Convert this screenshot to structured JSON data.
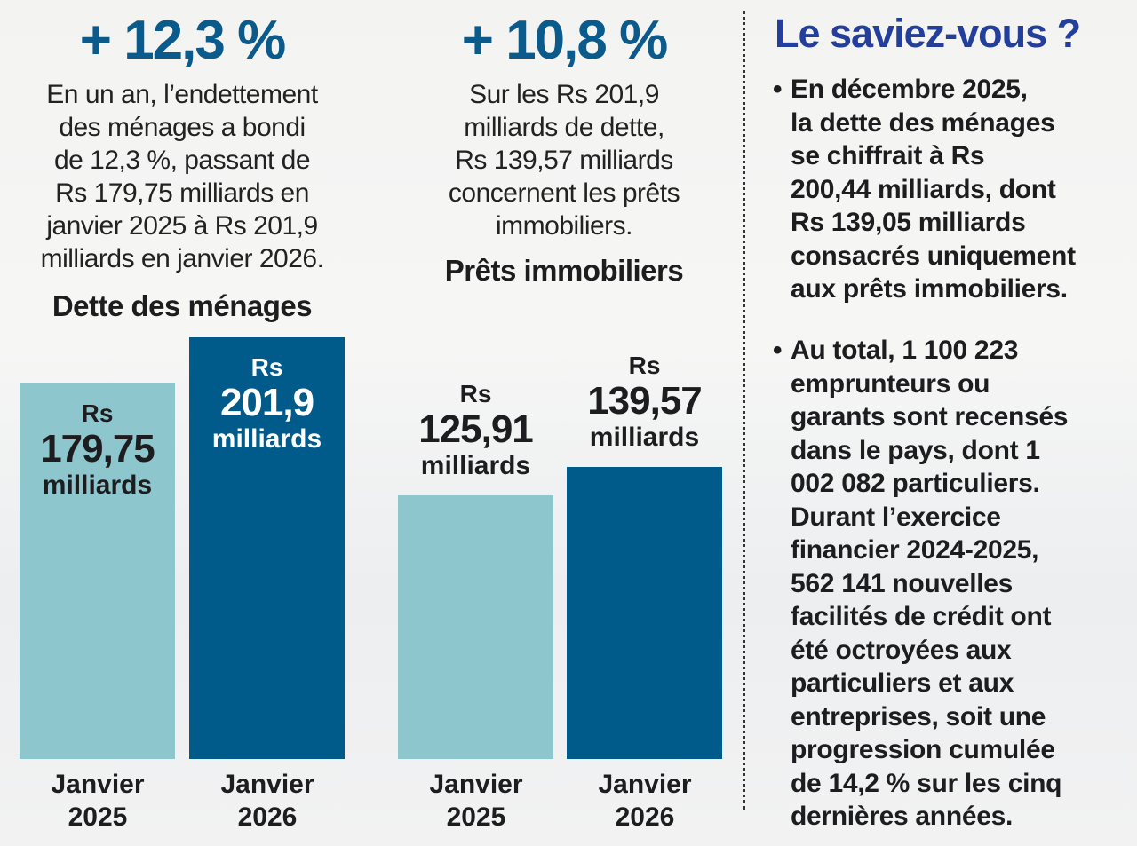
{
  "left_panel": {
    "headline": "+ 12,3 %",
    "description_lines": [
      "En un an, l’endettement",
      "des ménages a bondi",
      "de 12,3 %, passant de",
      "Rs 179,75 milliards en",
      "janvier 2025 à Rs 201,9",
      "milliards en janvier 2026."
    ]
  },
  "middle_panel": {
    "headline": "+ 10,8 %",
    "description_lines": [
      "Sur les Rs 201,9",
      "milliards de dette,",
      "Rs 139,57 milliards",
      "concernent les prêts",
      "immobiliers."
    ]
  },
  "colors": {
    "bar_2025": "#8ec6cd",
    "bar_2026": "#005a8a",
    "headline": "#0a5a8c",
    "side_title": "#233f9b"
  },
  "chart_data": [
    {
      "type": "bar",
      "title": "Dette des ménages",
      "categories": [
        "Janvier 2025",
        "Janvier 2026"
      ],
      "category_lines": [
        [
          "Janvier",
          "2025"
        ],
        [
          "Janvier",
          "2026"
        ]
      ],
      "values": [
        179.75,
        201.9
      ],
      "value_labels": [
        {
          "prefix": "Rs",
          "number": "179,75",
          "unit": "milliards"
        },
        {
          "prefix": "Rs",
          "number": "201,9",
          "unit": "milliards"
        }
      ],
      "label_position": "inside",
      "ylim": [
        0,
        201.9
      ],
      "grid": false,
      "xlabel": "",
      "ylabel": ""
    },
    {
      "type": "bar",
      "title": "Prêts immobiliers",
      "categories": [
        "Janvier 2025",
        "Janvier 2026"
      ],
      "category_lines": [
        [
          "Janvier",
          "2025"
        ],
        [
          "Janvier",
          "2026"
        ]
      ],
      "values": [
        125.91,
        139.57
      ],
      "value_labels": [
        {
          "prefix": "Rs",
          "number": "125,91",
          "unit": "milliards"
        },
        {
          "prefix": "Rs",
          "number": "139,57",
          "unit": "milliards"
        }
      ],
      "label_position": "above",
      "ylim": [
        0,
        201.9
      ],
      "grid": false,
      "xlabel": "",
      "ylabel": ""
    }
  ],
  "sidebar": {
    "title": "Le saviez-vous ?",
    "bullets": [
      {
        "lines": [
          "En décembre 2025,",
          "la dette des ménages",
          "se chiffrait à Rs",
          "200,44 milliards, dont",
          "Rs 139,05 milliards",
          "consacrés uniquement",
          "aux prêts immobiliers."
        ]
      },
      {
        "lines": [
          "Au total, 1 100 223",
          "emprunteurs ou",
          "garants sont recensés",
          "dans le pays, dont 1",
          "002 082 particuliers.",
          "Durant l’exercice",
          "financier 2024-2025,",
          "562 141 nouvelles",
          "facilités de crédit ont",
          "été octroyées aux",
          "particuliers et aux",
          "entreprises, soit une",
          "progression cumulée",
          "de 14,2 % sur les cinq",
          "dernières années."
        ]
      }
    ]
  }
}
